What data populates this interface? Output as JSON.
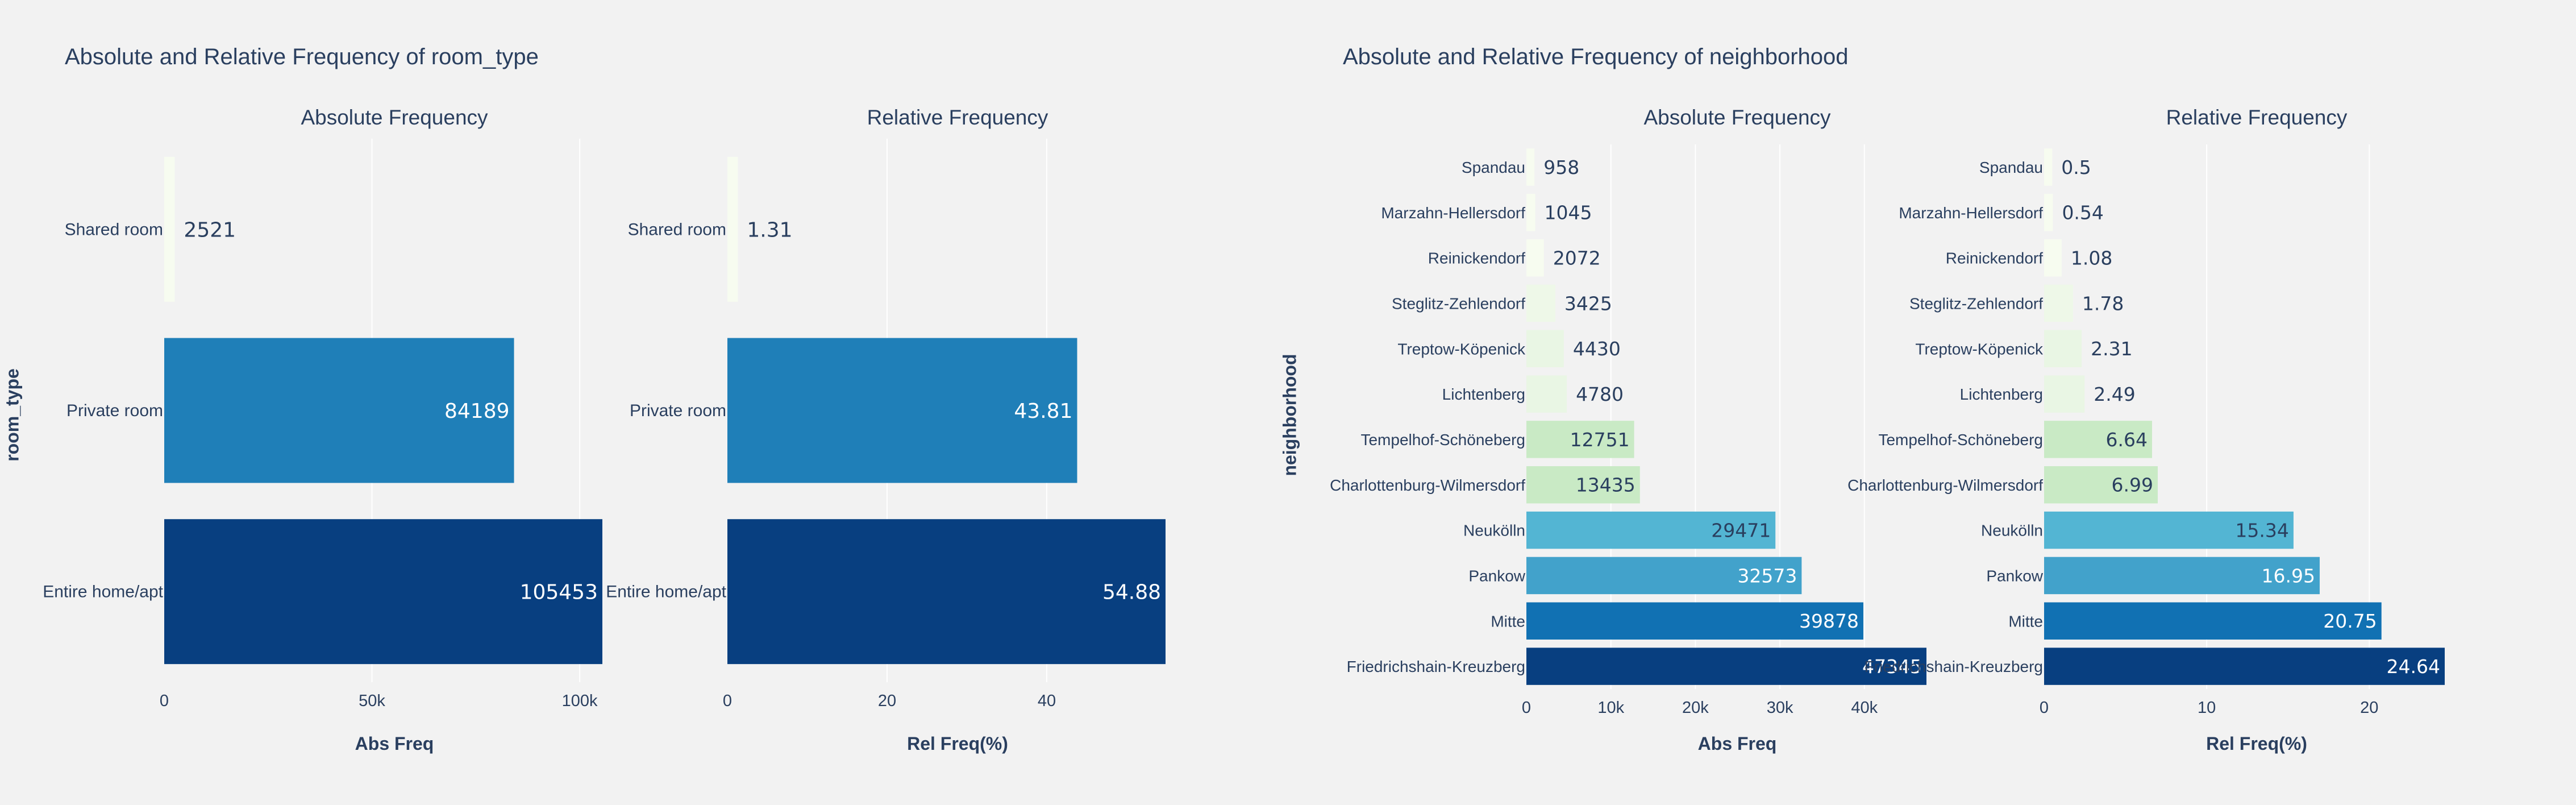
{
  "figures": [
    {
      "title": "Absolute and Relative Frequency of room_type",
      "ytitle": "room_type"
    },
    {
      "title": "Absolute and Relative Frequency of neighborhood",
      "ytitle": "neighborhood"
    }
  ],
  "colors": {
    "background": "#f2f2f2",
    "grid": "#ffffff",
    "text": "#2a3f5f",
    "label_light": "#2a3f5f",
    "label_dark": "#ffffff"
  },
  "chart_data": [
    {
      "type": "bar",
      "orientation": "horizontal",
      "subtitle": "Absolute Frequency",
      "xlabel": "Abs Freq",
      "ylabel": "room_type",
      "categories": [
        "Shared room",
        "Private room",
        "Entire home/apt"
      ],
      "values": [
        2521,
        84189,
        105453
      ],
      "colors": [
        "#f7fcf0",
        "#1f7fb8",
        "#083f80"
      ],
      "xlim": [
        0,
        105453
      ],
      "xticks": [
        0,
        50000,
        100000
      ],
      "xticklabels": [
        "0",
        "50k",
        "100k"
      ],
      "grid": true,
      "data_labels": true
    },
    {
      "type": "bar",
      "orientation": "horizontal",
      "subtitle": "Relative Frequency",
      "xlabel": "Rel Freq(%)",
      "ylabel": "",
      "categories": [
        "Shared room",
        "Private room",
        "Entire home/apt"
      ],
      "values": [
        1.31,
        43.81,
        54.88
      ],
      "colors": [
        "#f7fcf0",
        "#1f7fb8",
        "#083f80"
      ],
      "xlim": [
        0,
        54.88
      ],
      "xticks": [
        0,
        20,
        40
      ],
      "xticklabels": [
        "0",
        "20",
        "40"
      ],
      "grid": true,
      "data_labels": true
    },
    {
      "type": "bar",
      "orientation": "horizontal",
      "subtitle": "Absolute Frequency",
      "xlabel": "Abs Freq",
      "ylabel": "neighborhood",
      "categories": [
        "Spandau",
        "Marzahn-Hellersdorf",
        "Reinickendorf",
        "Steglitz-Zehlendorf",
        "Treptow-Köpenick",
        "Lichtenberg",
        "Tempelhof-Schöneberg",
        "Charlottenburg-Wilmersdorf",
        "Neukölln",
        "Pankow",
        "Mitte",
        "Friedrichshain-Kreuzberg"
      ],
      "values": [
        958,
        1045,
        2072,
        3425,
        4430,
        4780,
        12751,
        13435,
        29471,
        32573,
        39878,
        47345
      ],
      "colors": [
        "#f7fcf0",
        "#f7fcf0",
        "#f7fcf0",
        "#eef8e8",
        "#e9f6e4",
        "#e9f6e4",
        "#c9eac5",
        "#c9eac5",
        "#53b5d3",
        "#42a2cb",
        "#1171b3",
        "#083f80"
      ],
      "xlim": [
        0,
        47345
      ],
      "xticks": [
        0,
        10000,
        20000,
        30000,
        40000
      ],
      "xticklabels": [
        "0",
        "10k",
        "20k",
        "30k",
        "40k"
      ],
      "grid": true,
      "data_labels": true
    },
    {
      "type": "bar",
      "orientation": "horizontal",
      "subtitle": "Relative Frequency",
      "xlabel": "Rel Freq(%)",
      "ylabel": "",
      "categories": [
        "Spandau",
        "Marzahn-Hellersdorf",
        "Reinickendorf",
        "Steglitz-Zehlendorf",
        "Treptow-Köpenick",
        "Lichtenberg",
        "Tempelhof-Schöneberg",
        "Charlottenburg-Wilmersdorf",
        "Neukölln",
        "Pankow",
        "Mitte",
        "Friedrichshain-Kreuzberg"
      ],
      "values": [
        0.5,
        0.54,
        1.08,
        1.78,
        2.31,
        2.49,
        6.64,
        6.99,
        15.34,
        16.95,
        20.75,
        24.64
      ],
      "colors": [
        "#f7fcf0",
        "#f7fcf0",
        "#f7fcf0",
        "#eef8e8",
        "#e9f6e4",
        "#e9f6e4",
        "#c9eac5",
        "#c9eac5",
        "#53b5d3",
        "#42a2cb",
        "#1171b3",
        "#083f80"
      ],
      "xlim": [
        0,
        24.64
      ],
      "xticks": [
        0,
        10,
        20
      ],
      "xticklabels": [
        "0",
        "10",
        "20"
      ],
      "grid": true,
      "data_labels": true
    }
  ]
}
